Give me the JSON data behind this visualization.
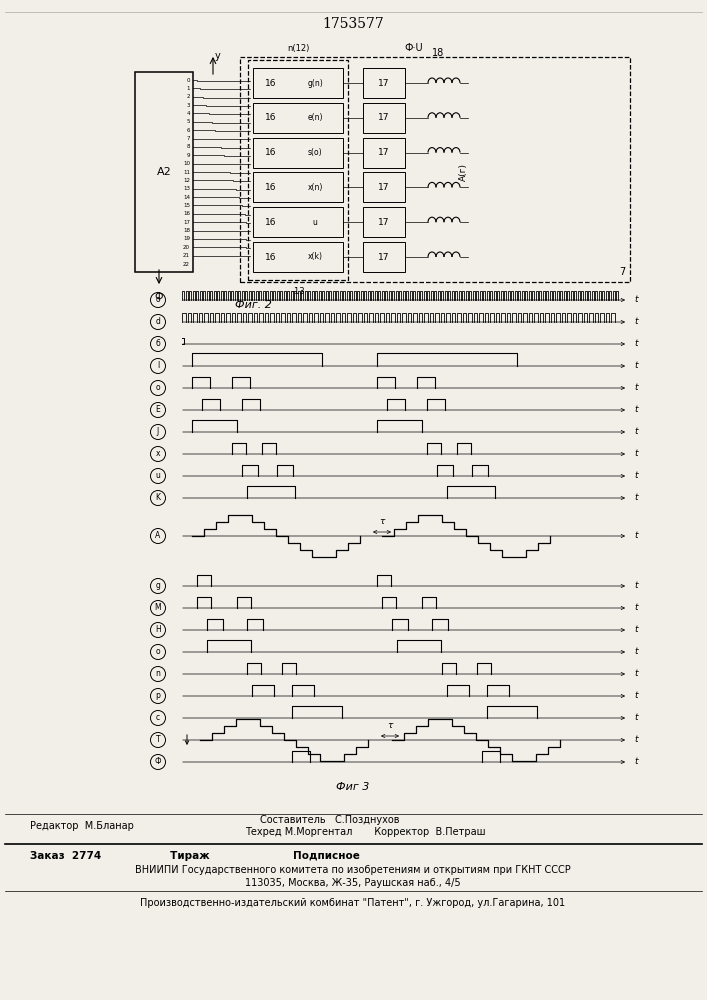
{
  "title": "1753577",
  "bg_color": "#f2efe9",
  "fig2_label": "Фиг. 2",
  "fig3_label": "Фиг 3",
  "footer_line1": "Составитель   С.Позднухов",
  "footer_line2": "Техред М.Моргентал       Корректор  В.Петраш",
  "footer_left": "Редактор  М.Бланар",
  "footer_bottom1": "Заказ  2774                   Тираж                       Подписное",
  "footer_bottom2": "ВНИИПИ Государственного комитета по изобретениям и открытиям при ГКНТ СССР",
  "footer_bottom3": "113035, Москва, Ж-35, Раушская наб., 4/5",
  "footer_bottom4": "Производственно-издательский комбинат \"Патент\", г. Ужгород, ул.Гагарина, 101"
}
